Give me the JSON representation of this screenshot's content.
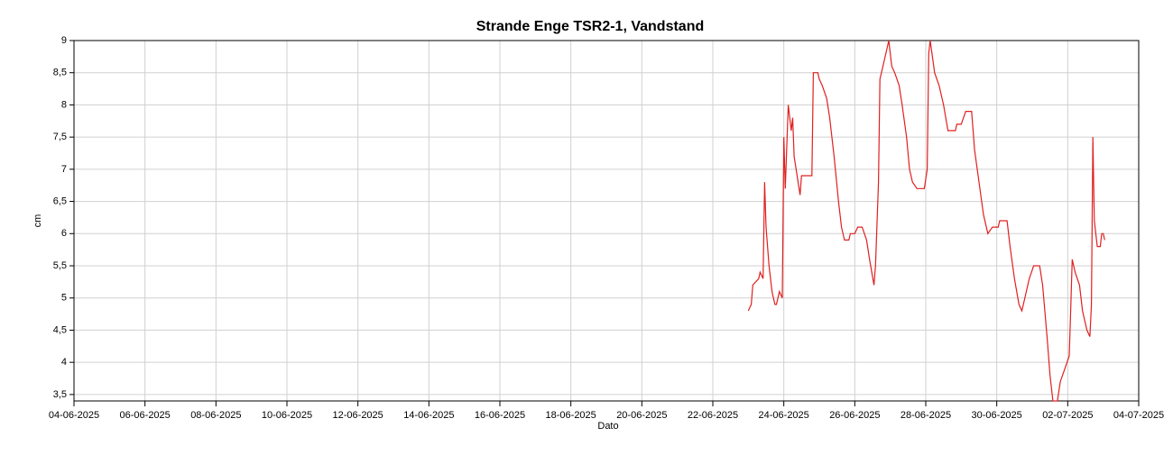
{
  "chart_data": {
    "type": "line",
    "title": "Strande Enge TSR2-1, Vandstand",
    "xlabel": "Dato",
    "ylabel": "cm",
    "xlim": [
      "2025-06-04",
      "2025-07-04"
    ],
    "xticks": [
      {
        "value": "2025-06-04",
        "label": "04-06-2025"
      },
      {
        "value": "2025-06-06",
        "label": "06-06-2025"
      },
      {
        "value": "2025-06-08",
        "label": "08-06-2025"
      },
      {
        "value": "2025-06-10",
        "label": "10-06-2025"
      },
      {
        "value": "2025-06-12",
        "label": "12-06-2025"
      },
      {
        "value": "2025-06-14",
        "label": "14-06-2025"
      },
      {
        "value": "2025-06-16",
        "label": "16-06-2025"
      },
      {
        "value": "2025-06-18",
        "label": "18-06-2025"
      },
      {
        "value": "2025-06-20",
        "label": "20-06-2025"
      },
      {
        "value": "2025-06-22",
        "label": "22-06-2025"
      },
      {
        "value": "2025-06-24",
        "label": "24-06-2025"
      },
      {
        "value": "2025-06-26",
        "label": "26-06-2025"
      },
      {
        "value": "2025-06-28",
        "label": "28-06-2025"
      },
      {
        "value": "2025-06-30",
        "label": "30-06-2025"
      },
      {
        "value": "2025-07-02",
        "label": "02-07-2025"
      },
      {
        "value": "2025-07-04",
        "label": "04-07-2025"
      }
    ],
    "ylim": [
      3.4,
      9
    ],
    "yticks": [
      {
        "value": 3.5,
        "label": "3,5"
      },
      4,
      {
        "value": 4.5,
        "label": "4,5"
      },
      5,
      {
        "value": 5.5,
        "label": "5,5"
      },
      6,
      {
        "value": 6.5,
        "label": "6,5"
      },
      7,
      {
        "value": 7.5,
        "label": "7,5"
      },
      8,
      {
        "value": 8.5,
        "label": "8,5"
      },
      9
    ],
    "grid": true,
    "x": [
      "2025-06-23T00:00",
      "2025-06-23T02:00",
      "2025-06-23T03:00",
      "2025-06-23T07:00",
      "2025-06-23T08:00",
      "2025-06-23T10:00",
      "2025-06-23T11:00",
      "2025-06-23T12:00",
      "2025-06-23T14:00",
      "2025-06-23T16:00",
      "2025-06-23T18:00",
      "2025-06-23T19:00",
      "2025-06-23T21:00",
      "2025-06-23T23:00",
      "2025-06-24T00:00",
      "2025-06-24T01:00",
      "2025-06-24T03:00",
      "2025-06-24T05:00",
      "2025-06-24T06:00",
      "2025-06-24T07:00",
      "2025-06-24T09:00",
      "2025-06-24T11:00",
      "2025-06-24T12:00",
      "2025-06-24T19:00",
      "2025-06-24T20:00",
      "2025-06-24T23:00",
      "2025-06-25T00:00",
      "2025-06-25T02:00",
      "2025-06-25T05:00",
      "2025-06-25T07:00",
      "2025-06-25T10:00",
      "2025-06-25T13:00",
      "2025-06-25T15:00",
      "2025-06-25T17:00",
      "2025-06-25T20:00",
      "2025-06-25T21:00",
      "2025-06-26T00:00",
      "2025-06-26T02:00",
      "2025-06-26T05:00",
      "2025-06-26T08:00",
      "2025-06-26T10:00",
      "2025-06-26T13:00",
      "2025-06-26T14:00",
      "2025-06-26T16:00",
      "2025-06-26T17:00",
      "2025-06-26T19:00",
      "2025-06-26T21:00",
      "2025-06-26T23:00",
      "2025-06-27T01:00",
      "2025-06-27T03:00",
      "2025-06-27T06:00",
      "2025-06-27T08:00",
      "2025-06-27T11:00",
      "2025-06-27T13:00",
      "2025-06-27T15:00",
      "2025-06-27T18:00",
      "2025-06-27T23:00",
      "2025-06-28T01:00",
      "2025-06-28T02:00",
      "2025-06-28T03:00",
      "2025-06-28T06:00",
      "2025-06-28T09:00",
      "2025-06-28T12:00",
      "2025-06-28T15:00",
      "2025-06-28T20:00",
      "2025-06-28T21:00",
      "2025-06-29T00:00",
      "2025-06-29T03:00",
      "2025-06-29T07:00",
      "2025-06-29T09:00",
      "2025-06-29T12:00",
      "2025-06-29T15:00",
      "2025-06-29T18:00",
      "2025-06-29T21:00",
      "2025-06-30T01:00",
      "2025-06-30T02:00",
      "2025-06-30T07:00",
      "2025-06-30T09:00",
      "2025-06-30T12:00",
      "2025-06-30T15:00",
      "2025-06-30T17:00",
      "2025-06-30T19:00",
      "2025-06-30T22:00",
      "2025-07-01T01:00",
      "2025-07-01T05:00",
      "2025-07-01T07:00",
      "2025-07-01T10:00",
      "2025-07-01T12:00",
      "2025-07-01T14:00",
      "2025-07-01T17:00",
      "2025-07-01T19:00",
      "2025-07-01T22:00",
      "2025-07-02T01:00",
      "2025-07-02T02:00",
      "2025-07-02T03:00",
      "2025-07-02T05:00",
      "2025-07-02T08:00",
      "2025-07-02T10:00",
      "2025-07-02T13:00",
      "2025-07-02T15:00",
      "2025-07-02T16:00",
      "2025-07-02T17:00",
      "2025-07-02T18:00",
      "2025-07-02T20:00",
      "2025-07-02T22:00",
      "2025-07-02T23:00",
      "2025-07-03T00:00",
      "2025-07-03T01:00"
    ],
    "series": [
      {
        "name": "Vandstand",
        "color": "#e02020",
        "values": [
          4.8,
          4.9,
          5.2,
          5.3,
          5.4,
          5.3,
          6.8,
          6.1,
          5.5,
          5.1,
          4.9,
          4.9,
          5.1,
          5.0,
          7.5,
          6.7,
          8.0,
          7.6,
          7.8,
          7.2,
          6.9,
          6.6,
          6.9,
          6.9,
          8.5,
          8.5,
          8.4,
          8.3,
          8.1,
          7.8,
          7.2,
          6.5,
          6.1,
          5.9,
          5.9,
          6.0,
          6.0,
          6.1,
          6.1,
          5.9,
          5.6,
          5.2,
          5.5,
          6.8,
          8.4,
          8.6,
          8.8,
          9.0,
          8.6,
          8.5,
          8.3,
          8.0,
          7.5,
          7.0,
          6.8,
          6.7,
          6.7,
          7.0,
          8.8,
          9.0,
          8.5,
          8.3,
          8.0,
          7.6,
          7.6,
          7.7,
          7.7,
          7.9,
          7.9,
          7.3,
          6.8,
          6.3,
          6.0,
          6.1,
          6.1,
          6.2,
          6.2,
          5.8,
          5.3,
          4.9,
          4.8,
          5.0,
          5.3,
          5.5,
          5.5,
          5.2,
          4.4,
          3.8,
          3.4,
          3.4,
          3.7,
          3.9,
          4.1,
          4.8,
          5.6,
          5.4,
          5.2,
          4.8,
          4.5,
          4.4,
          4.9,
          7.5,
          6.2,
          5.8,
          5.8,
          6.0,
          6.0,
          5.9
        ]
      }
    ]
  }
}
